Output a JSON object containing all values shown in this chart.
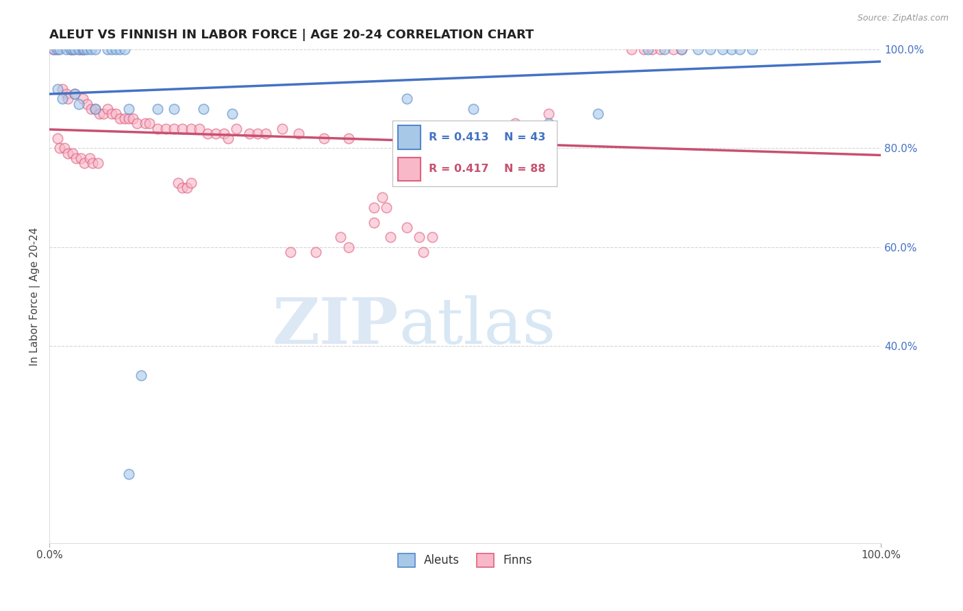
{
  "title": "ALEUT VS FINNISH IN LABOR FORCE | AGE 20-24 CORRELATION CHART",
  "source": "Source: ZipAtlas.com",
  "ylabel": "In Labor Force | Age 20-24",
  "xlim": [
    0.0,
    1.0
  ],
  "ylim": [
    0.0,
    1.0
  ],
  "ytick_positions": [
    0.4,
    0.6,
    0.8,
    1.0
  ],
  "ytick_labels": [
    "40.0%",
    "60.0%",
    "80.0%",
    "100.0%"
  ],
  "grid_color": "#c8c8c8",
  "background_color": "#ffffff",
  "aleut_fill": "#a8c8e8",
  "finn_fill": "#f8b8c8",
  "aleut_edge": "#5588cc",
  "finn_edge": "#e06080",
  "aleut_line": "#4472c4",
  "finn_line": "#c85070",
  "watermark_color": "#dde8f5",
  "aleut_points": [
    [
      0.005,
      1.0
    ],
    [
      0.01,
      1.0
    ],
    [
      0.012,
      1.0
    ],
    [
      0.02,
      1.0
    ],
    [
      0.025,
      1.0
    ],
    [
      0.028,
      1.0
    ],
    [
      0.03,
      1.0
    ],
    [
      0.035,
      1.0
    ],
    [
      0.04,
      1.0
    ],
    [
      0.042,
      1.0
    ],
    [
      0.045,
      1.0
    ],
    [
      0.05,
      1.0
    ],
    [
      0.055,
      1.0
    ],
    [
      0.07,
      1.0
    ],
    [
      0.075,
      1.0
    ],
    [
      0.08,
      1.0
    ],
    [
      0.085,
      1.0
    ],
    [
      0.09,
      1.0
    ],
    [
      0.72,
      1.0
    ],
    [
      0.74,
      1.0
    ],
    [
      0.76,
      1.0
    ],
    [
      0.78,
      1.0
    ],
    [
      0.795,
      1.0
    ],
    [
      0.81,
      1.0
    ],
    [
      0.82,
      1.0
    ],
    [
      0.83,
      1.0
    ],
    [
      0.845,
      1.0
    ],
    [
      0.01,
      0.92
    ],
    [
      0.015,
      0.9
    ],
    [
      0.03,
      0.91
    ],
    [
      0.035,
      0.89
    ],
    [
      0.055,
      0.88
    ],
    [
      0.095,
      0.88
    ],
    [
      0.13,
      0.88
    ],
    [
      0.15,
      0.88
    ],
    [
      0.185,
      0.88
    ],
    [
      0.22,
      0.87
    ],
    [
      0.43,
      0.9
    ],
    [
      0.51,
      0.88
    ],
    [
      0.6,
      0.85
    ],
    [
      0.66,
      0.87
    ],
    [
      0.11,
      0.34
    ],
    [
      0.095,
      0.14
    ]
  ],
  "finn_points": [
    [
      0.005,
      1.0
    ],
    [
      0.008,
      1.0
    ],
    [
      0.025,
      1.0
    ],
    [
      0.028,
      1.0
    ],
    [
      0.035,
      1.0
    ],
    [
      0.038,
      1.0
    ],
    [
      0.04,
      1.0
    ],
    [
      0.7,
      1.0
    ],
    [
      0.715,
      1.0
    ],
    [
      0.725,
      1.0
    ],
    [
      0.735,
      1.0
    ],
    [
      0.75,
      1.0
    ],
    [
      0.76,
      1.0
    ],
    [
      0.015,
      0.92
    ],
    [
      0.02,
      0.91
    ],
    [
      0.022,
      0.9
    ],
    [
      0.03,
      0.91
    ],
    [
      0.04,
      0.9
    ],
    [
      0.045,
      0.89
    ],
    [
      0.05,
      0.88
    ],
    [
      0.055,
      0.88
    ],
    [
      0.06,
      0.87
    ],
    [
      0.065,
      0.87
    ],
    [
      0.07,
      0.88
    ],
    [
      0.075,
      0.87
    ],
    [
      0.08,
      0.87
    ],
    [
      0.085,
      0.86
    ],
    [
      0.09,
      0.86
    ],
    [
      0.095,
      0.86
    ],
    [
      0.1,
      0.86
    ],
    [
      0.105,
      0.85
    ],
    [
      0.115,
      0.85
    ],
    [
      0.12,
      0.85
    ],
    [
      0.13,
      0.84
    ],
    [
      0.14,
      0.84
    ],
    [
      0.15,
      0.84
    ],
    [
      0.16,
      0.84
    ],
    [
      0.17,
      0.84
    ],
    [
      0.18,
      0.84
    ],
    [
      0.19,
      0.83
    ],
    [
      0.2,
      0.83
    ],
    [
      0.21,
      0.83
    ],
    [
      0.215,
      0.82
    ],
    [
      0.225,
      0.84
    ],
    [
      0.24,
      0.83
    ],
    [
      0.25,
      0.83
    ],
    [
      0.26,
      0.83
    ],
    [
      0.28,
      0.84
    ],
    [
      0.3,
      0.83
    ],
    [
      0.33,
      0.82
    ],
    [
      0.36,
      0.82
    ],
    [
      0.01,
      0.82
    ],
    [
      0.012,
      0.8
    ],
    [
      0.018,
      0.8
    ],
    [
      0.022,
      0.79
    ],
    [
      0.028,
      0.79
    ],
    [
      0.032,
      0.78
    ],
    [
      0.038,
      0.78
    ],
    [
      0.042,
      0.77
    ],
    [
      0.048,
      0.78
    ],
    [
      0.052,
      0.77
    ],
    [
      0.058,
      0.77
    ],
    [
      0.155,
      0.73
    ],
    [
      0.16,
      0.72
    ],
    [
      0.165,
      0.72
    ],
    [
      0.17,
      0.73
    ],
    [
      0.4,
      0.7
    ],
    [
      0.39,
      0.68
    ],
    [
      0.405,
      0.68
    ],
    [
      0.39,
      0.65
    ],
    [
      0.43,
      0.64
    ],
    [
      0.41,
      0.62
    ],
    [
      0.445,
      0.62
    ],
    [
      0.46,
      0.62
    ],
    [
      0.35,
      0.62
    ],
    [
      0.36,
      0.6
    ],
    [
      0.29,
      0.59
    ],
    [
      0.32,
      0.59
    ],
    [
      0.45,
      0.59
    ],
    [
      0.6,
      0.87
    ],
    [
      0.56,
      0.85
    ]
  ]
}
